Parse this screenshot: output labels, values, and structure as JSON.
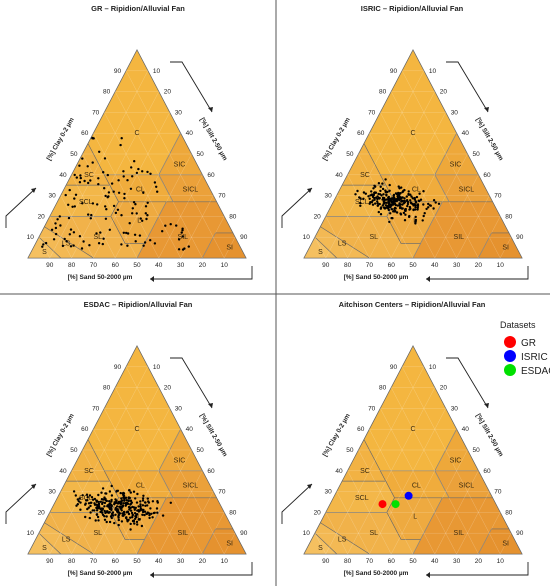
{
  "chart_data": [
    {
      "type": "scatter",
      "title": "GR – Ripidion/Alluvial Fan",
      "axes": {
        "clay": "[%] Clay 0-2 µm",
        "silt": "[%] Silt 2-50 µm",
        "sand": "[%] Sand 50-2000 µm",
        "ticks": [
          "10",
          "20",
          "30",
          "40",
          "50",
          "60",
          "70",
          "80",
          "90"
        ]
      },
      "classes": [
        "C",
        "SC",
        "SIC",
        "CL",
        "SICL",
        "SCL",
        "L",
        "SIL",
        "SL",
        "LS",
        "S",
        "SI"
      ],
      "points_seed": 11,
      "points_count": 210,
      "sand_range": [
        22,
        92
      ],
      "clay_range": [
        4,
        58
      ]
    },
    {
      "type": "scatter",
      "title": "ISRIC – Ripidion/Alluvial Fan",
      "axes": {
        "clay": "[%] Clay 0-2 µm",
        "silt": "[%] Silt 2-50 µm",
        "sand": "[%] Sand 50-2000 µm",
        "ticks": [
          "10",
          "20",
          "30",
          "40",
          "50",
          "60",
          "70",
          "80",
          "90"
        ]
      },
      "classes": [
        "C",
        "SC",
        "SIC",
        "CL",
        "SICL",
        "SCL",
        "L",
        "SIL",
        "SL",
        "LS",
        "S",
        "SI"
      ],
      "points_seed": 23,
      "points_count": 260,
      "sand_center": 44,
      "clay_center": 27,
      "sand_spread": 7,
      "clay_spread": 3.5
    },
    {
      "type": "scatter",
      "title": "ESDAC – Ripidion/Alluvial Fan",
      "axes": {
        "clay": "[%] Clay 0-2 µm",
        "silt": "[%] Silt 2-50 µm",
        "sand": "[%] Sand 50-2000 µm",
        "ticks": [
          "10",
          "20",
          "30",
          "40",
          "50",
          "60",
          "70",
          "80",
          "90"
        ]
      },
      "classes": [
        "C",
        "SC",
        "SIC",
        "CL",
        "SICL",
        "SCL",
        "L",
        "SIL",
        "SL",
        "LS",
        "S",
        "SI"
      ],
      "points_seed": 37,
      "points_count": 300,
      "sand_center": 47,
      "clay_center": 23,
      "sand_spread": 8,
      "clay_spread": 4
    },
    {
      "type": "scatter",
      "title": "Aitchison Centers – Ripidion/Alluvial Fan",
      "axes": {
        "clay": "[%] Clay 0-2 µm",
        "silt": "[%] Silt 2-50 µm",
        "sand": "[%] Sand 50-2000 µm",
        "ticks": [
          "10",
          "20",
          "30",
          "40",
          "50",
          "60",
          "70",
          "80",
          "90"
        ]
      },
      "classes": [
        "C",
        "SC",
        "SIC",
        "CL",
        "SICL",
        "SCL",
        "L",
        "SIL",
        "SL",
        "LS",
        "S",
        "SI"
      ],
      "legend": {
        "title": "Datasets",
        "placement": "top-right",
        "entries": [
          {
            "name": "GR",
            "color": "#ff0000"
          },
          {
            "name": "ISRIC",
            "color": "#0000ff"
          },
          {
            "name": "ESDAC",
            "color": "#00e000"
          }
        ]
      },
      "centers": [
        {
          "name": "GR",
          "sand": 52,
          "clay": 24,
          "color": "#ff0000"
        },
        {
          "name": "ISRIC",
          "sand": 38,
          "clay": 28,
          "color": "#0000ff"
        },
        {
          "name": "ESDAC",
          "sand": 46,
          "clay": 24,
          "color": "#00e000"
        }
      ]
    }
  ]
}
